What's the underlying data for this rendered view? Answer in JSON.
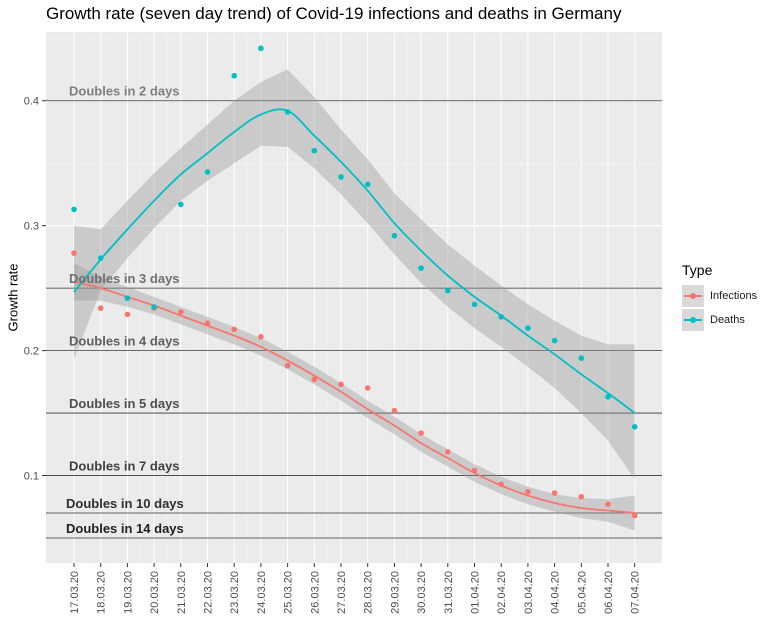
{
  "chart_data": {
    "type": "scatter",
    "title": "Growth rate (seven day trend) of Covid-19 infections and deaths in Germany",
    "xlabel": "",
    "ylabel": "Growth rate",
    "ylim": [
      0.03,
      0.455
    ],
    "yticks": [
      0.1,
      0.2,
      0.3,
      0.4
    ],
    "grid": true,
    "legend_placement": "right",
    "legend_title": "Type",
    "categories": [
      "17.03.20",
      "18.03.20",
      "19.03.20",
      "20.03.20",
      "21.03.20",
      "22.03.20",
      "23.03.20",
      "24.03.20",
      "25.03.20",
      "26.03.20",
      "27.03.20",
      "28.03.20",
      "29.03.20",
      "30.03.20",
      "31.03.20",
      "01.04.20",
      "02.04.20",
      "03.04.20",
      "04.04.20",
      "05.04.20",
      "06.04.20",
      "07.04.20"
    ],
    "series": [
      {
        "name": "Infections",
        "color": "#F8766D",
        "points": [
          0.278,
          0.234,
          0.229,
          0.234,
          0.231,
          0.222,
          0.217,
          0.211,
          0.188,
          0.177,
          0.173,
          0.17,
          0.152,
          0.134,
          0.119,
          0.104,
          0.093,
          0.087,
          0.086,
          0.083,
          0.077,
          0.068
        ],
        "trend": [
          0.255,
          0.25,
          0.243,
          0.236,
          0.228,
          0.22,
          0.212,
          0.203,
          0.192,
          0.18,
          0.167,
          0.153,
          0.14,
          0.126,
          0.114,
          0.102,
          0.092,
          0.084,
          0.078,
          0.074,
          0.072,
          0.07
        ],
        "band": [
          [
            0.24,
            0.27
          ],
          [
            0.24,
            0.259
          ],
          [
            0.235,
            0.251
          ],
          [
            0.229,
            0.243
          ],
          [
            0.221,
            0.235
          ],
          [
            0.213,
            0.227
          ],
          [
            0.205,
            0.219
          ],
          [
            0.196,
            0.21
          ],
          [
            0.185,
            0.199
          ],
          [
            0.173,
            0.187
          ],
          [
            0.16,
            0.174
          ],
          [
            0.146,
            0.16
          ],
          [
            0.133,
            0.147
          ],
          [
            0.119,
            0.133
          ],
          [
            0.107,
            0.121
          ],
          [
            0.095,
            0.109
          ],
          [
            0.085,
            0.099
          ],
          [
            0.077,
            0.091
          ],
          [
            0.071,
            0.085
          ],
          [
            0.066,
            0.082
          ],
          [
            0.063,
            0.081
          ],
          [
            0.056,
            0.084
          ]
        ]
      },
      {
        "name": "Deaths",
        "color": "#00BFC4",
        "points": [
          0.313,
          0.274,
          0.242,
          0.235,
          0.317,
          0.343,
          0.42,
          0.442,
          0.391,
          0.36,
          0.339,
          0.333,
          0.292,
          0.266,
          0.248,
          0.237,
          0.227,
          0.218,
          0.208,
          0.194,
          0.163,
          0.139
        ],
        "trend": [
          0.247,
          0.273,
          0.297,
          0.32,
          0.341,
          0.358,
          0.375,
          0.389,
          0.392,
          0.372,
          0.351,
          0.328,
          0.302,
          0.28,
          0.26,
          0.243,
          0.228,
          0.212,
          0.197,
          0.181,
          0.166,
          0.15
        ],
        "band": [
          [
            0.193,
            0.3
          ],
          [
            0.248,
            0.297
          ],
          [
            0.274,
            0.32
          ],
          [
            0.298,
            0.342
          ],
          [
            0.32,
            0.362
          ],
          [
            0.336,
            0.381
          ],
          [
            0.35,
            0.4
          ],
          [
            0.364,
            0.415
          ],
          [
            0.363,
            0.425
          ],
          [
            0.346,
            0.403
          ],
          [
            0.325,
            0.377
          ],
          [
            0.302,
            0.353
          ],
          [
            0.277,
            0.326
          ],
          [
            0.254,
            0.305
          ],
          [
            0.235,
            0.285
          ],
          [
            0.218,
            0.268
          ],
          [
            0.203,
            0.252
          ],
          [
            0.187,
            0.237
          ],
          [
            0.17,
            0.224
          ],
          [
            0.15,
            0.212
          ],
          [
            0.128,
            0.205
          ],
          [
            0.097,
            0.205
          ]
        ]
      }
    ],
    "reference_lines": [
      {
        "y": 0.4,
        "label": "Doubles in 2 days",
        "label_color": "#7f7f7f"
      },
      {
        "y": 0.25,
        "label": "Doubles in 3 days",
        "label_color": "#6f6f6f"
      },
      {
        "y": 0.2,
        "label": "Doubles in 4 days",
        "label_color": "#5f5f5f"
      },
      {
        "y": 0.15,
        "label": "Doubles in 5 days",
        "label_color": "#4f4f4f"
      },
      {
        "y": 0.1,
        "label": "Doubles in 7 days",
        "label_color": "#3f3f3f"
      },
      {
        "y": 0.07,
        "label": "Doubles in 10 days",
        "label_color": "#2f2f2f"
      },
      {
        "y": 0.05,
        "label": "Doubles in 14 days",
        "label_color": "#1f1f1f"
      }
    ]
  }
}
